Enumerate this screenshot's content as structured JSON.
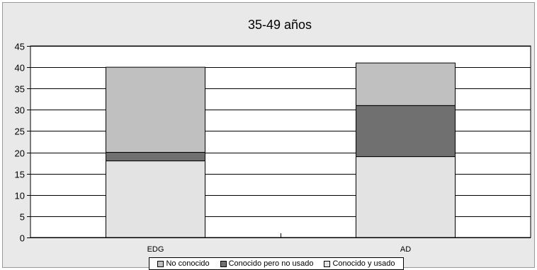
{
  "chart_data": {
    "type": "bar",
    "stacked": true,
    "title": "35-49 años",
    "categories": [
      "EDG",
      "AD"
    ],
    "series": [
      {
        "name": "Conocido y usado",
        "values": [
          18,
          19
        ],
        "color": "#e3e3e3"
      },
      {
        "name": "Conocido pero no usado",
        "values": [
          2,
          12
        ],
        "color": "#707070"
      },
      {
        "name": "No conocido",
        "values": [
          20,
          10
        ],
        "color": "#c0c0c0"
      }
    ],
    "legend_order": [
      "No conocido",
      "Conocido pero no usado",
      "Conocido y usado"
    ],
    "ylim": [
      0,
      45
    ],
    "yticks": [
      0,
      5,
      10,
      15,
      20,
      25,
      30,
      35,
      40,
      45
    ],
    "grid": true,
    "legend_position": "bottom",
    "plot_background": "#ffffff",
    "frame_background": "#e9e9e9",
    "xlabel": "",
    "ylabel": ""
  }
}
